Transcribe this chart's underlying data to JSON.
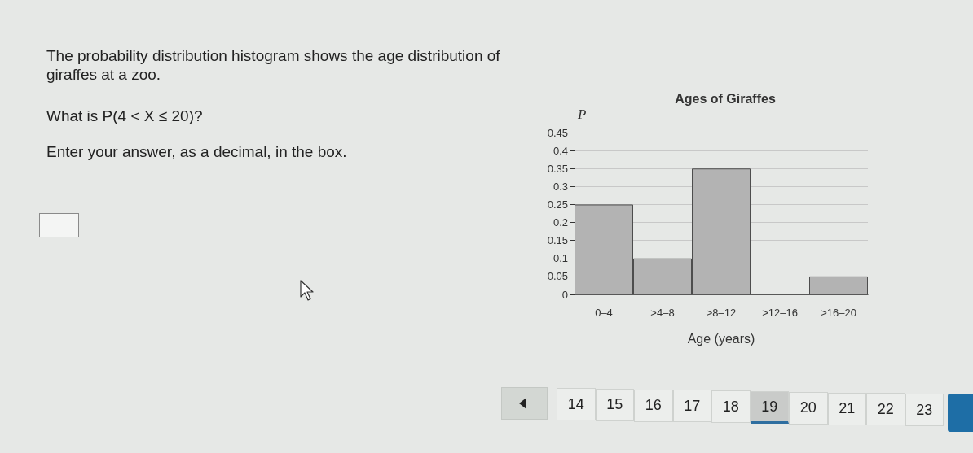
{
  "chart_data": {
    "type": "bar",
    "title": "Ages of Giraffes",
    "xlabel": "Age (years)",
    "ylabel": "P",
    "categories": [
      "0–4",
      ">4–8",
      ">8–12",
      ">12–16",
      ">16–20"
    ],
    "values": [
      0.25,
      0.1,
      0.35,
      0,
      0.05
    ],
    "color": "#b3b3b3",
    "ylim": [
      0,
      0.45
    ],
    "yticks": [
      0,
      0.05,
      0.1,
      0.15,
      0.2,
      0.25,
      0.3,
      0.35,
      0.4,
      0.45
    ],
    "grid": "y",
    "annotations": [
      "The probability distribution histogram shows the age distribution of giraffes at a zoo.",
      "What is P(4 < X ≤ 20)?",
      "Enter your answer, as a decimal, in the box.",
      "14",
      "15",
      "16",
      "17",
      "18",
      "19",
      "20",
      "21",
      "22",
      "23"
    ]
  }
}
